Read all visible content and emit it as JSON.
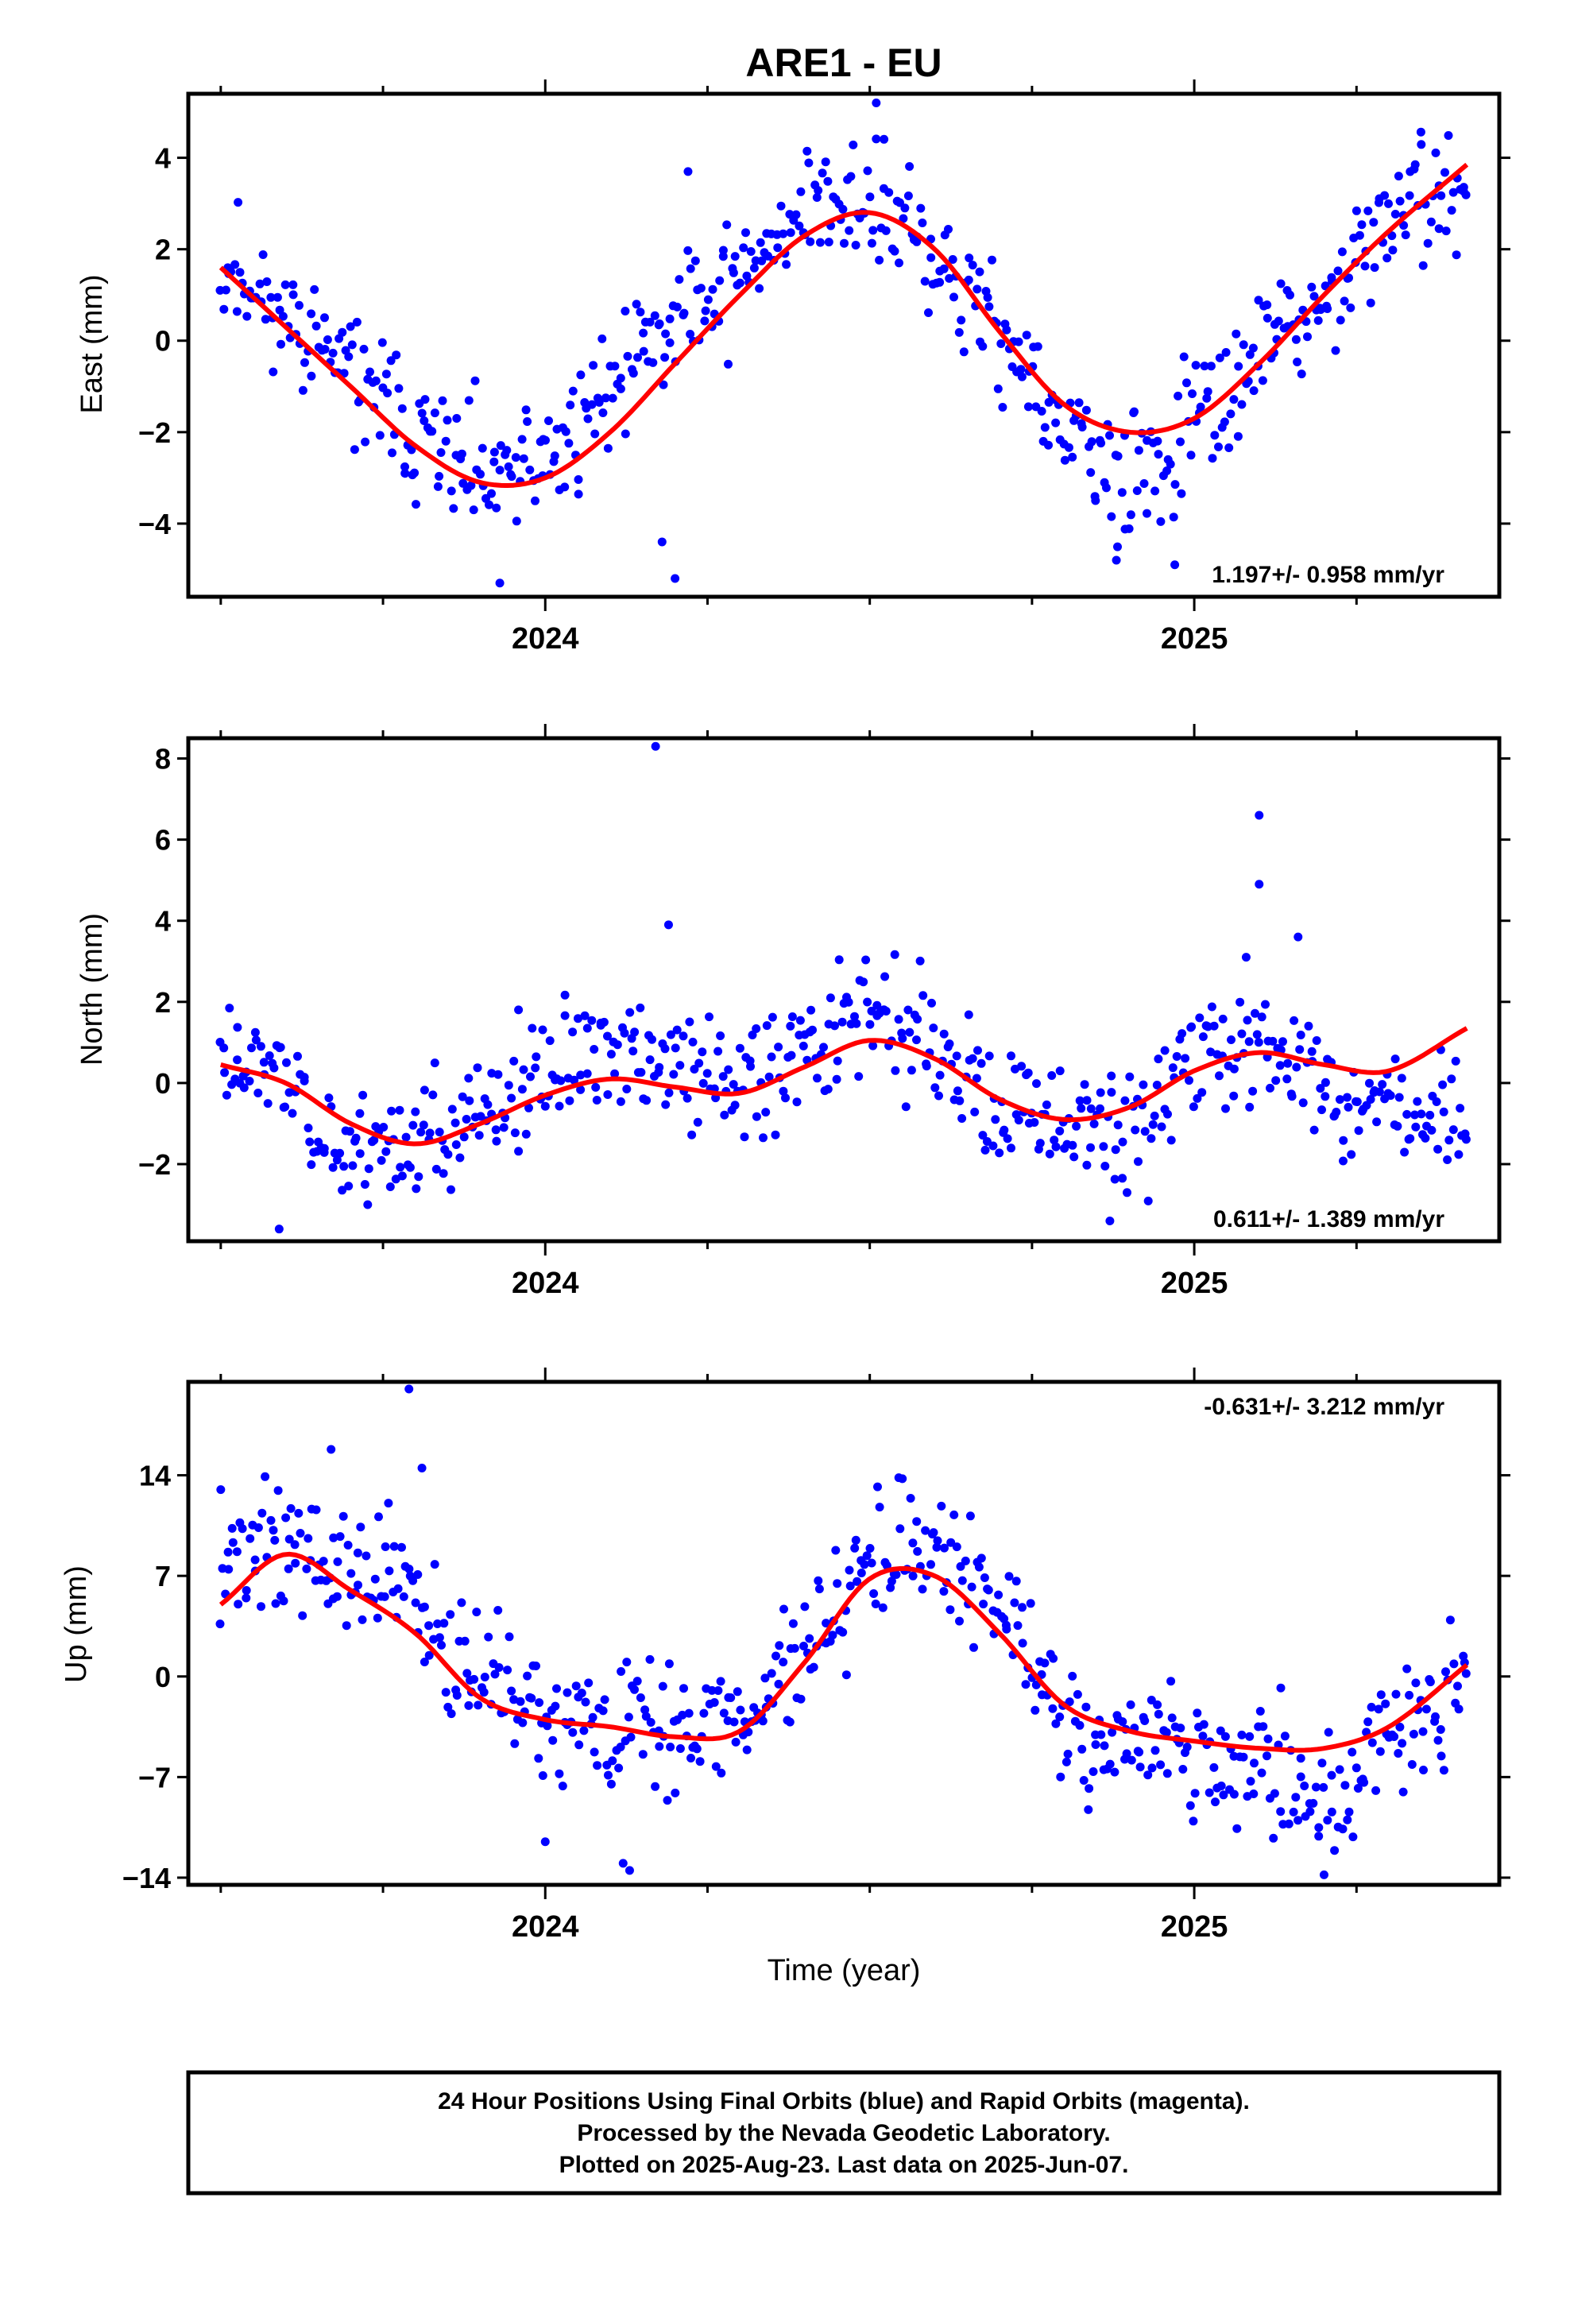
{
  "title": "ARE1 - EU",
  "footer": {
    "line1": "24 Hour Positions Using Final Orbits (blue) and Rapid Orbits (magenta).",
    "line2": "Processed by the Nevada Geodetic Laboratory.",
    "line3": "Plotted on 2025-Aug-23. Last data on 2025-Jun-07."
  },
  "xlabel": "Time (year)",
  "colors": {
    "points": "#0000ff",
    "fit": "#ff0000",
    "frame": "#000000"
  },
  "chart_data": [
    {
      "type": "scatter",
      "panel": "east",
      "ylabel": "East (mm)",
      "rate": "1.197+/- 0.958 mm/yr",
      "xlim": [
        2023.45,
        2025.47
      ],
      "ylim": [
        -5.6,
        5.4
      ],
      "yticks": [
        -4,
        -2,
        0,
        2,
        4
      ],
      "yticklabels": [
        "−4",
        "−2",
        "0",
        "2",
        "4"
      ],
      "xticks": [
        2024,
        2025
      ],
      "xticklabels": [
        "2024",
        "2025"
      ],
      "fit": {
        "x": [
          2023.5,
          2023.6,
          2023.7,
          2023.8,
          2023.9,
          2024.0,
          2024.1,
          2024.2,
          2024.3,
          2024.4,
          2024.5,
          2024.6,
          2024.7,
          2024.8,
          2024.9,
          2025.0,
          2025.1,
          2025.2,
          2025.3,
          2025.42
        ],
        "y": [
          1.6,
          0.3,
          -1.0,
          -2.3,
          -3.1,
          -3.0,
          -2.0,
          -0.5,
          1.0,
          2.3,
          2.8,
          2.0,
          0.2,
          -1.4,
          -2.0,
          -1.7,
          -0.5,
          1.0,
          2.4,
          3.85
        ]
      },
      "anchors": {
        "x": [
          2023.5,
          2023.6,
          2023.7,
          2023.8,
          2023.9,
          2024.0,
          2024.1,
          2024.2,
          2024.3,
          2024.4,
          2024.5,
          2024.6,
          2024.7,
          2024.8,
          2024.9,
          2025.0,
          2025.1,
          2025.2,
          2025.3,
          2025.42
        ],
        "y": [
          1.8,
          0.6,
          -0.7,
          -2.0,
          -3.0,
          -2.6,
          -1.0,
          0.6,
          1.5,
          2.9,
          2.9,
          1.8,
          0.2,
          -2.1,
          -2.9,
          -1.9,
          -0.2,
          0.6,
          2.7,
          3.2
        ]
      },
      "noise": 1.0,
      "n": 560,
      "seed": 11,
      "outliers": {
        "x": [
          2023.93,
          2024.2,
          2024.22,
          2024.51,
          2024.18,
          2024.88,
          2024.97
        ],
        "y": [
          -5.3,
          -5.2,
          3.7,
          5.2,
          -4.4,
          -4.8,
          -4.9
        ]
      }
    },
    {
      "type": "scatter",
      "panel": "north",
      "ylabel": "North (mm)",
      "rate": "0.611+/- 1.389 mm/yr",
      "xlim": [
        2023.45,
        2025.47
      ],
      "ylim": [
        -3.9,
        8.5
      ],
      "yticks": [
        -2,
        0,
        2,
        4,
        6,
        8
      ],
      "yticklabels": [
        "−2",
        "0",
        "2",
        "4",
        "6",
        "8"
      ],
      "xticks": [
        2024,
        2025
      ],
      "xticklabels": [
        "2024",
        "2025"
      ],
      "fit": {
        "x": [
          2023.5,
          2023.6,
          2023.7,
          2023.8,
          2023.9,
          2024.0,
          2024.1,
          2024.2,
          2024.3,
          2024.4,
          2024.5,
          2024.6,
          2024.7,
          2024.8,
          2024.9,
          2025.0,
          2025.1,
          2025.2,
          2025.3,
          2025.42
        ],
        "y": [
          0.45,
          0.0,
          -1.0,
          -1.5,
          -1.0,
          -0.3,
          0.1,
          -0.1,
          -0.25,
          0.4,
          1.05,
          0.6,
          -0.4,
          -0.9,
          -0.6,
          0.3,
          0.75,
          0.45,
          0.3,
          1.35
        ]
      },
      "anchors": {
        "x": [
          2023.5,
          2023.6,
          2023.7,
          2023.8,
          2023.9,
          2024.0,
          2024.1,
          2024.2,
          2024.3,
          2024.4,
          2024.5,
          2024.6,
          2024.7,
          2024.8,
          2024.9,
          2025.0,
          2025.1,
          2025.2,
          2025.3,
          2025.42
        ],
        "y": [
          0.8,
          0.0,
          -1.6,
          -1.4,
          -0.9,
          0.2,
          0.6,
          0.4,
          0.0,
          0.9,
          1.9,
          0.5,
          -0.6,
          -1.0,
          -1.1,
          0.5,
          0.9,
          -0.2,
          -0.3,
          -0.9
        ]
      },
      "noise": 1.05,
      "n": 560,
      "seed": 23,
      "outliers": {
        "x": [
          2024.17,
          2025.1,
          2025.1,
          2025.16,
          2024.19,
          2025.08,
          2024.87,
          2023.59
        ],
        "y": [
          8.3,
          6.6,
          4.9,
          3.6,
          3.9,
          3.1,
          -3.4,
          -3.6
        ]
      }
    },
    {
      "type": "scatter",
      "panel": "up",
      "ylabel": "Up (mm)",
      "rate": "-0.631+/- 3.212 mm/yr",
      "xlim": [
        2023.45,
        2025.47
      ],
      "ylim": [
        -14.5,
        20.5
      ],
      "yticks": [
        -14,
        -7,
        0,
        7,
        14
      ],
      "yticklabels": [
        "−14",
        "−7",
        "0",
        "7",
        "14"
      ],
      "xticks": [
        2024,
        2025
      ],
      "xticklabels": [
        "2024",
        "2025"
      ],
      "fit": {
        "x": [
          2023.5,
          2023.6,
          2023.7,
          2023.8,
          2023.9,
          2024.0,
          2024.1,
          2024.2,
          2024.3,
          2024.4,
          2024.5,
          2024.6,
          2024.7,
          2024.8,
          2024.9,
          2025.0,
          2025.1,
          2025.2,
          2025.3,
          2025.42
        ],
        "y": [
          5.0,
          8.5,
          6.0,
          3.0,
          -1.5,
          -3.0,
          -3.5,
          -4.2,
          -3.8,
          1.0,
          6.8,
          7.0,
          3.0,
          -2.0,
          -3.8,
          -4.5,
          -5.0,
          -5.0,
          -3.5,
          0.8
        ]
      },
      "anchors": {
        "x": [
          2023.5,
          2023.6,
          2023.7,
          2023.8,
          2023.9,
          2024.0,
          2024.1,
          2024.2,
          2024.3,
          2024.4,
          2024.5,
          2024.6,
          2024.7,
          2024.8,
          2024.9,
          2025.0,
          2025.1,
          2025.2,
          2025.3,
          2025.42
        ],
        "y": [
          8.0,
          9.0,
          7.0,
          5.5,
          0.0,
          -2.5,
          -4.0,
          -3.0,
          -2.5,
          2.0,
          9.0,
          8.0,
          5.0,
          -3.0,
          -4.0,
          -5.0,
          -6.0,
          -8.0,
          -4.0,
          -1.0
        ]
      },
      "noise": 3.2,
      "n": 560,
      "seed": 37,
      "outliers": {
        "x": [
          2023.79,
          2024.13,
          2024.12,
          2024.0,
          2023.67,
          2023.5,
          2023.81,
          2025.2
        ],
        "y": [
          20.0,
          -13.5,
          -13.0,
          -11.5,
          15.8,
          13.0,
          14.5,
          -13.8
        ]
      }
    }
  ]
}
